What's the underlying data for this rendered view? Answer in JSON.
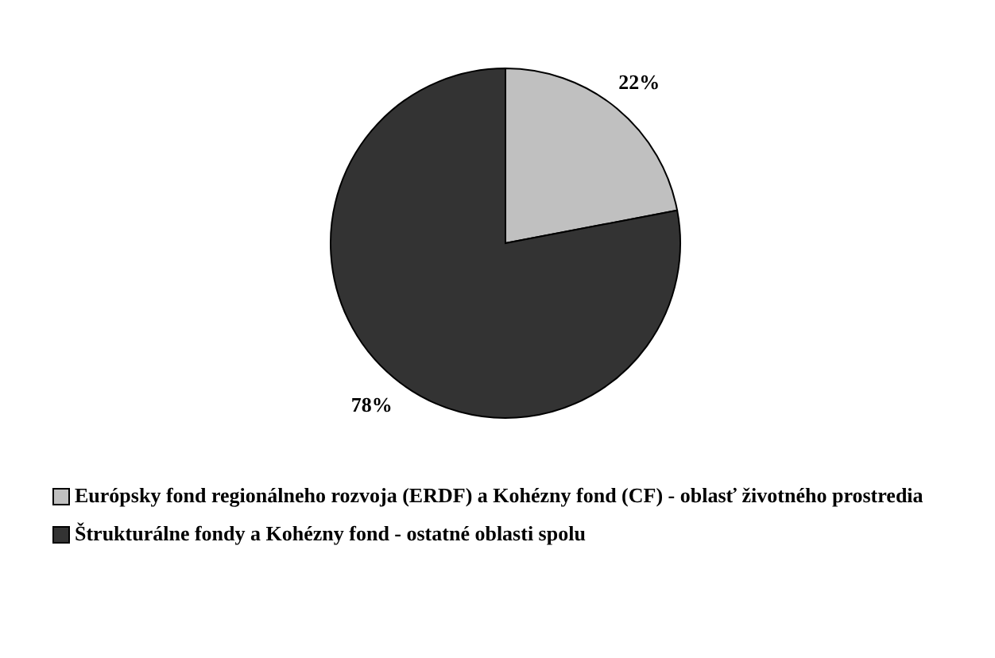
{
  "chart_data": {
    "type": "pie",
    "categories": [
      "Európsky fond regionálneho rozvoja (ERDF) a Kohézny fond (CF) - oblasť životného prostredia",
      "Štrukturálne fondy a Kohézny fond - ostatné oblasti spolu"
    ],
    "values": [
      22,
      78
    ],
    "colors": [
      "#c0c0c0",
      "#333333"
    ],
    "value_labels": [
      "22%",
      "78%"
    ],
    "legend": "bottom"
  }
}
